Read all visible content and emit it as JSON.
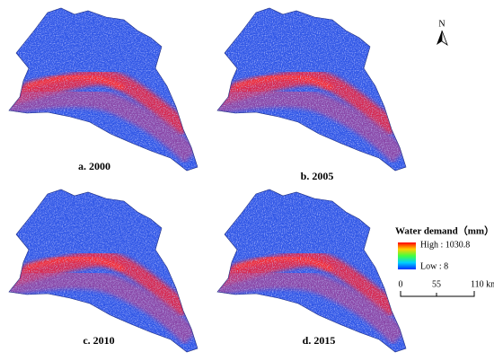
{
  "panels": [
    {
      "label": "a. 2000"
    },
    {
      "label": "b. 2005"
    },
    {
      "label": "c. 2010"
    },
    {
      "label": "d. 2015"
    }
  ],
  "north": "N",
  "legend": {
    "title": "Water demand（mm）",
    "high": "High : 1030.8",
    "low": "Low : 8"
  },
  "scale_bar": {
    "ticks": [
      "0",
      "55",
      "110 km"
    ]
  }
}
